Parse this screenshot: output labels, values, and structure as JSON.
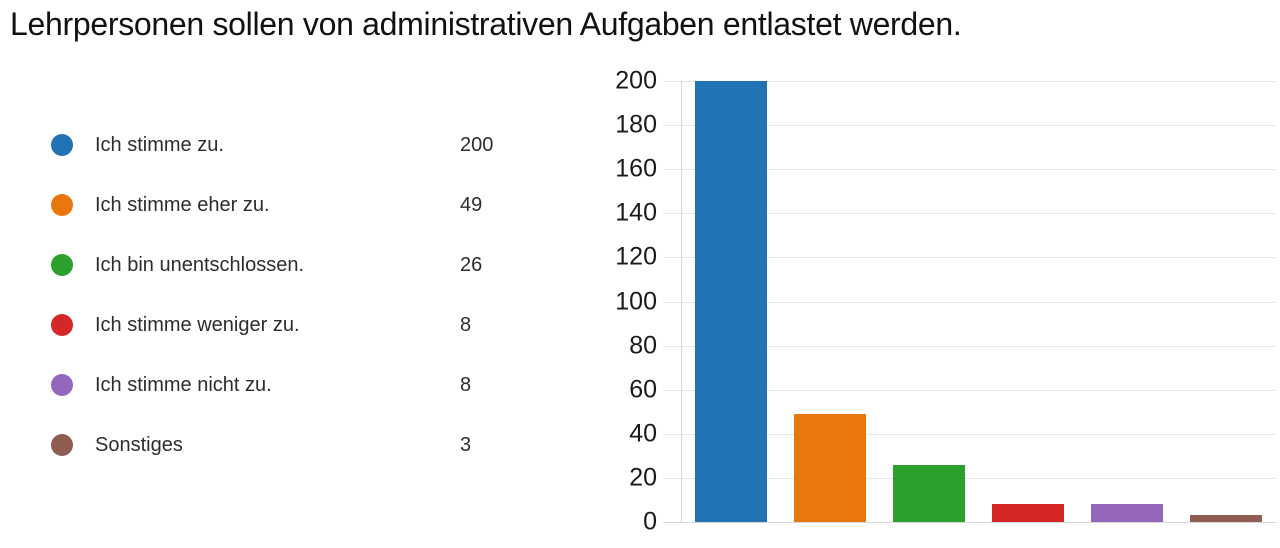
{
  "chart_data": {
    "type": "bar",
    "title": "Lehrpersonen sollen von administrativen Aufgaben entlastet werden.",
    "categories": [
      "Ich stimme zu.",
      "Ich stimme eher zu.",
      "Ich bin unentschlossen.",
      "Ich stimme weniger zu.",
      "Ich stimme nicht zu.",
      "Sonstiges"
    ],
    "values": [
      200,
      49,
      26,
      8,
      8,
      3
    ],
    "bar_colors": [
      "#2273B4",
      "#E8780D",
      "#2CA02C",
      "#D62728",
      "#9467BD",
      "#8E5C50"
    ],
    "ylim": [
      0,
      200
    ],
    "ytick_step": 20,
    "yticks": [
      0,
      20,
      40,
      60,
      80,
      100,
      120,
      140,
      160,
      180,
      200
    ],
    "xlabel": "",
    "ylabel": "",
    "grid": "horizontal",
    "legend_position": "left",
    "x_tick_labels_shown": false
  }
}
